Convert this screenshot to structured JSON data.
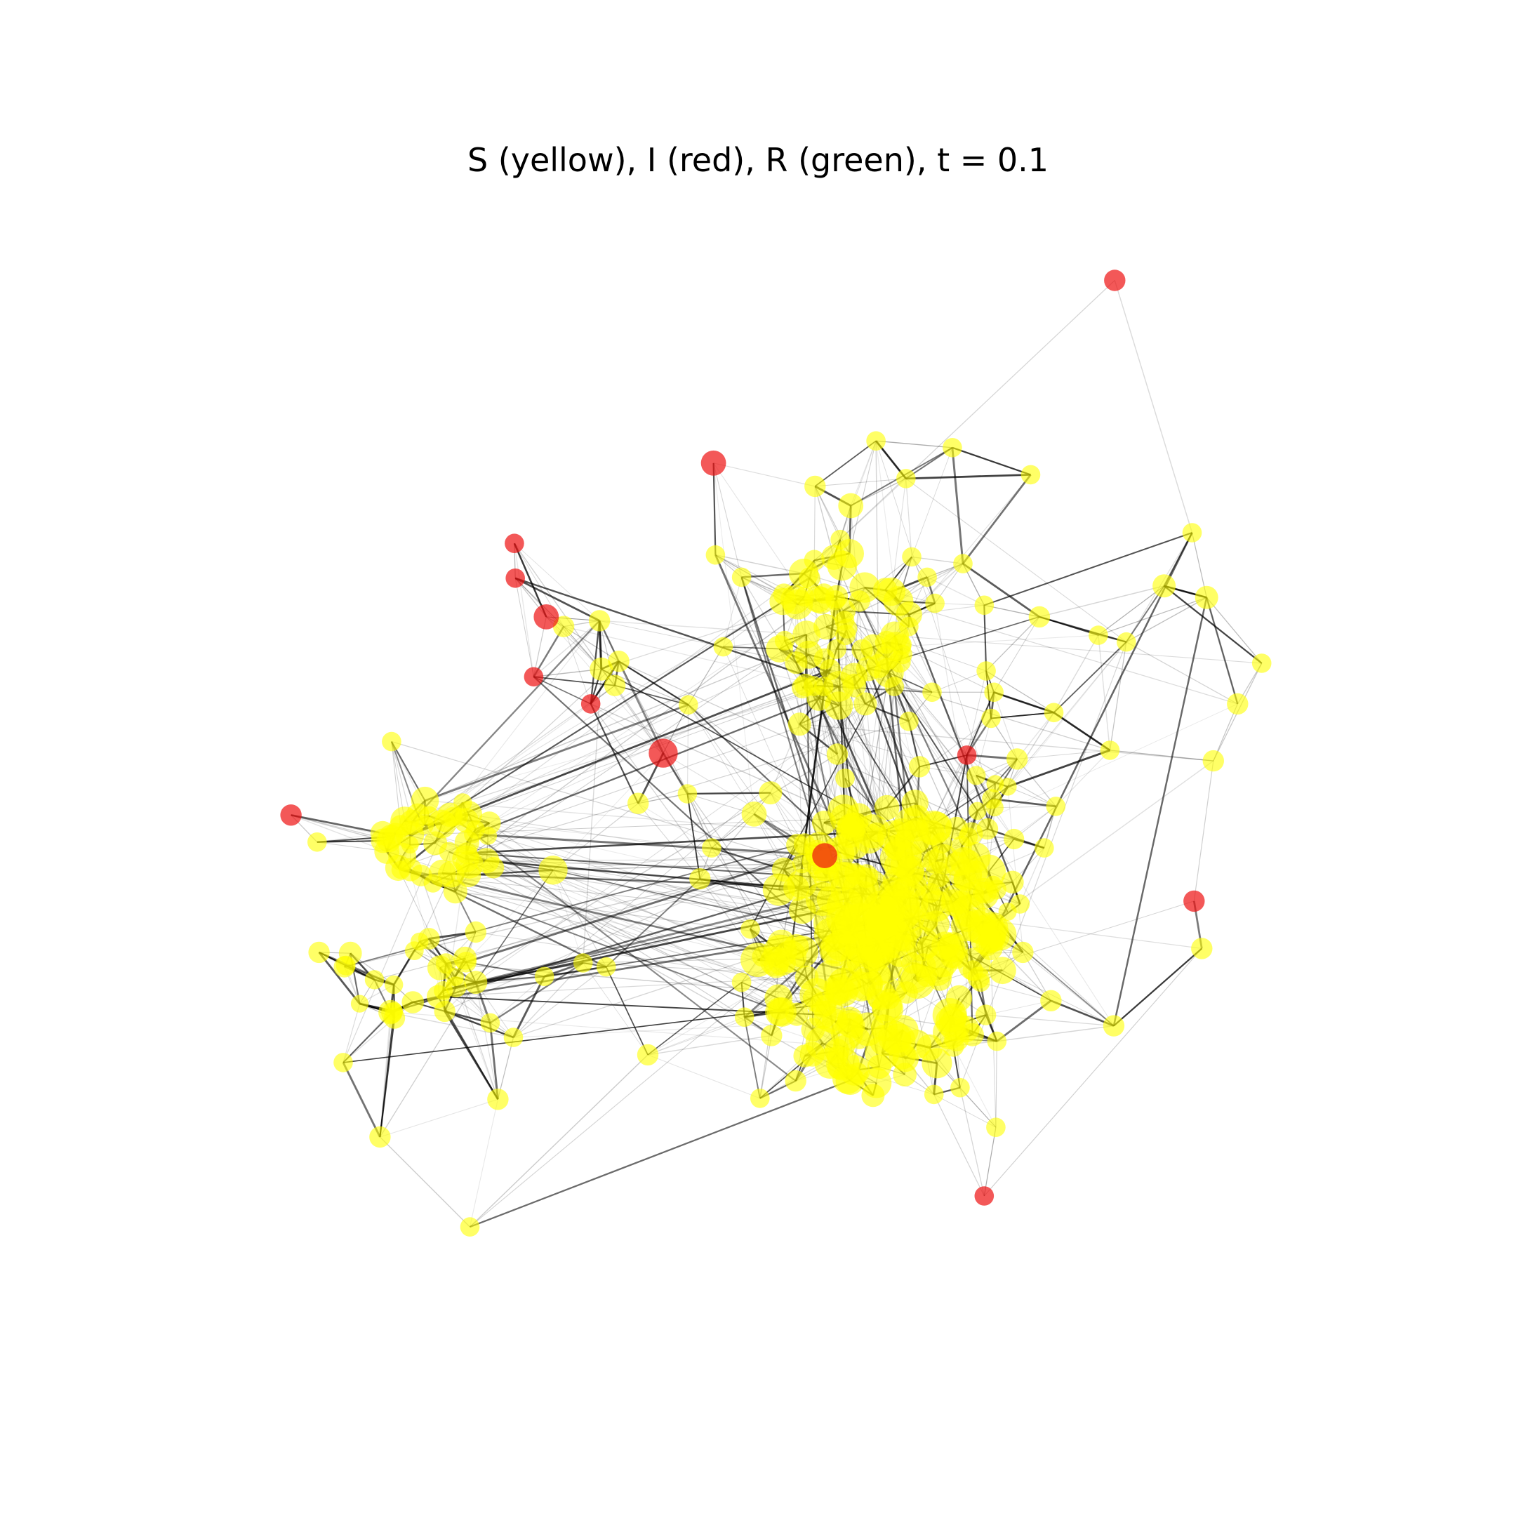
{
  "title": "S (yellow), I (red), R (green), t = 0.1",
  "colors": {
    "susceptible": "#ffff00",
    "infected": "#ee1111",
    "recovered": "#22aa22",
    "edge": "#000000",
    "background": "#ffffff"
  }
}
